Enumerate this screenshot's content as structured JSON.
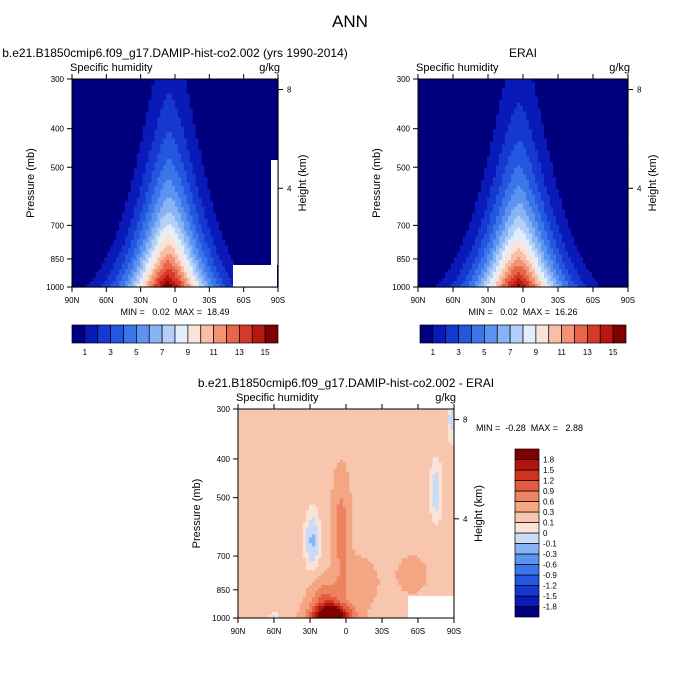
{
  "page_title": "ANN",
  "chart_data": [
    {
      "type": "heatmap",
      "id": "model",
      "title": "b.e21.B1850cmip6.f09_g17.DAMIP-hist-co2.002 (yrs 1990-2014)",
      "left_label": "Specific humidity",
      "units": "g/kg",
      "ylabel": "Pressure (mb)",
      "right_label": "Height (km)",
      "xlim": [
        90,
        -90
      ],
      "ylim": [
        1000,
        300
      ],
      "y_scale": "log",
      "x_ticks": [
        "90N",
        "60N",
        "30N",
        "0",
        "30S",
        "60S",
        "90S"
      ],
      "x_tick_values": [
        90,
        60,
        30,
        0,
        -30,
        -60,
        -90
      ],
      "y_ticks": [
        "300",
        "400",
        "500",
        "700",
        "850",
        "1000"
      ],
      "y_tick_values": [
        300,
        400,
        500,
        700,
        850,
        1000
      ],
      "height_ticks": [
        "8",
        "4"
      ],
      "height_tick_values": [
        8,
        4
      ],
      "min": 0.02,
      "max": 18.49,
      "stats_text": "MIN =   0.02  MAX =  18.49",
      "levels": [
        1,
        2,
        3,
        4,
        5,
        6,
        7,
        8,
        9,
        10,
        11,
        12,
        13,
        14,
        15
      ],
      "colorbar_labels": [
        "1",
        "3",
        "5",
        "7",
        "9",
        "11",
        "13",
        "15"
      ],
      "colorbar_label_values": [
        1,
        3,
        5,
        7,
        9,
        11,
        13,
        15
      ],
      "colors": [
        "#00007f",
        "#0a1ab8",
        "#1539d0",
        "#2457e0",
        "#3b75ea",
        "#5c93f0",
        "#88b3f5",
        "#b4d0f9",
        "#e3eefb",
        "#fbe3d8",
        "#f8bea7",
        "#f39274",
        "#e8654a",
        "#d63a26",
        "#b8160e",
        "#7f0000"
      ]
    },
    {
      "type": "heatmap",
      "id": "obs",
      "title": "ERAI",
      "left_label": "Specific humidity",
      "units": "g/kg",
      "ylabel": "Pressure (mb)",
      "right_label": "Height (km)",
      "xlim": [
        90,
        -90
      ],
      "ylim": [
        1000,
        300
      ],
      "y_scale": "log",
      "x_ticks": [
        "90N",
        "60N",
        "30N",
        "0",
        "30S",
        "60S",
        "90S"
      ],
      "x_tick_values": [
        90,
        60,
        30,
        0,
        -30,
        -60,
        -90
      ],
      "y_ticks": [
        "300",
        "400",
        "500",
        "700",
        "850",
        "1000"
      ],
      "y_tick_values": [
        300,
        400,
        500,
        700,
        850,
        1000
      ],
      "height_ticks": [
        "8",
        "4"
      ],
      "height_tick_values": [
        8,
        4
      ],
      "min": 0.02,
      "max": 16.26,
      "stats_text": "MIN =   0.02  MAX =  16.26",
      "levels": [
        1,
        2,
        3,
        4,
        5,
        6,
        7,
        8,
        9,
        10,
        11,
        12,
        13,
        14,
        15
      ],
      "colorbar_labels": [
        "1",
        "3",
        "5",
        "7",
        "9",
        "11",
        "13",
        "15"
      ],
      "colorbar_label_values": [
        1,
        3,
        5,
        7,
        9,
        11,
        13,
        15
      ],
      "colors": [
        "#00007f",
        "#0a1ab8",
        "#1539d0",
        "#2457e0",
        "#3b75ea",
        "#5c93f0",
        "#88b3f5",
        "#b4d0f9",
        "#e3eefb",
        "#fbe3d8",
        "#f8bea7",
        "#f39274",
        "#e8654a",
        "#d63a26",
        "#b8160e",
        "#7f0000"
      ]
    },
    {
      "type": "heatmap",
      "id": "diff",
      "title": "b.e21.B1850cmip6.f09_g17.DAMIP-hist-co2.002 - ERAI",
      "left_label": "Specific humidity",
      "units": "g/kg",
      "ylabel": "Pressure (mb)",
      "right_label": "Height (km)",
      "xlim": [
        90,
        -90
      ],
      "ylim": [
        1000,
        300
      ],
      "y_scale": "log",
      "x_ticks": [
        "90N",
        "60N",
        "30N",
        "0",
        "30S",
        "60S",
        "90S"
      ],
      "x_tick_values": [
        90,
        60,
        30,
        0,
        -30,
        -60,
        -90
      ],
      "y_ticks": [
        "300",
        "400",
        "500",
        "700",
        "850",
        "1000"
      ],
      "y_tick_values": [
        300,
        400,
        500,
        700,
        850,
        1000
      ],
      "height_ticks": [
        "8",
        "4"
      ],
      "height_tick_values": [
        8,
        4
      ],
      "min": -0.28,
      "max": 2.88,
      "stats_text": "MIN =  -0.28  MAX =   2.88",
      "levels": [
        -1.8,
        -1.5,
        -1.2,
        -0.9,
        -0.6,
        -0.3,
        -0.1,
        0,
        0.1,
        0.3,
        0.6,
        0.9,
        1.2,
        1.5,
        1.8
      ],
      "colorbar_labels": [
        "1.8",
        "1.5",
        "1.2",
        "0.9",
        "0.6",
        "0.3",
        "0.1",
        "0",
        "-0.1",
        "-0.3",
        "-0.6",
        "-0.9",
        "-1.2",
        "-1.5",
        "-1.8"
      ],
      "colorbar_label_values": [
        1.8,
        1.5,
        1.2,
        0.9,
        0.6,
        0.3,
        0.1,
        0,
        -0.1,
        -0.3,
        -0.6,
        -0.9,
        -1.2,
        -1.5,
        -1.8
      ],
      "colors": [
        "#00007f",
        "#0a1ab8",
        "#1539d0",
        "#2457e0",
        "#3b75ea",
        "#5c93f0",
        "#88b3f5",
        "#c9dcf6",
        "#fbe3d8",
        "#f8c6ae",
        "#f4a582",
        "#ee8360",
        "#e35b3e",
        "#cf3320",
        "#b0150d",
        "#7f0000"
      ]
    }
  ]
}
